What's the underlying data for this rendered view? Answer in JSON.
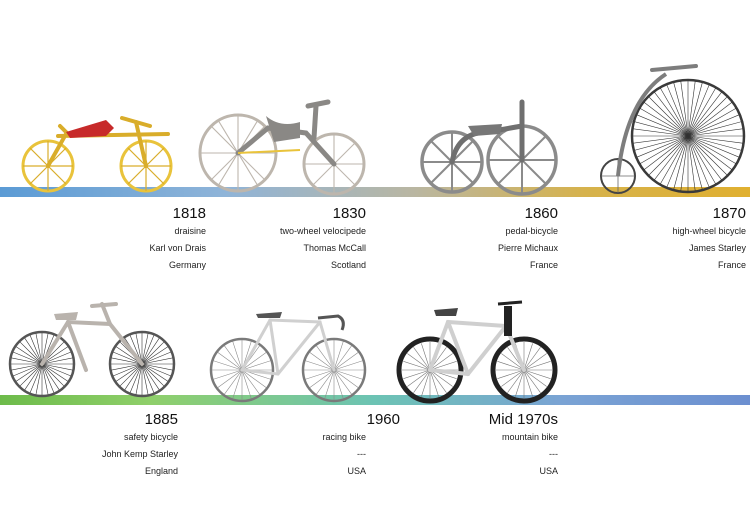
{
  "timeline": [
    {
      "year": "1818",
      "type": "draisine",
      "inventor": "Karl von Drais",
      "country": "Germany"
    },
    {
      "year": "1830",
      "type": "two-wheel velocipede",
      "inventor": "Thomas McCall",
      "country": "Scotland"
    },
    {
      "year": "1860",
      "type": "pedal-bicycle",
      "inventor": "Pierre Michaux",
      "country": "France"
    },
    {
      "year": "1870",
      "type": "high-wheel bicycle",
      "inventor": "James Starley",
      "country": "France"
    },
    {
      "year": "1885",
      "type": "safety bicycle",
      "inventor": "John Kemp Starley",
      "country": "England"
    },
    {
      "year": "1960",
      "type": "racing bike",
      "inventor": "---",
      "country": "USA"
    },
    {
      "year": "Mid 1970s",
      "type": "mountain bike",
      "inventor": "---",
      "country": "USA"
    }
  ]
}
